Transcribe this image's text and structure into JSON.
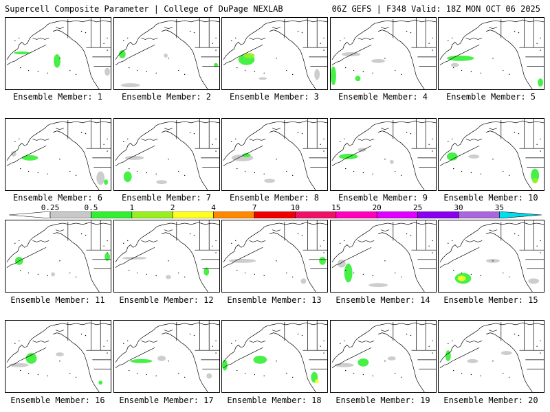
{
  "header": {
    "left_title": "Supercell Composite Parameter | College of DuPage NEXLAB",
    "right_title": "06Z GEFS | F348 Valid: 18Z MON OCT 06 2025"
  },
  "colorbar": {
    "labels": [
      "0.25",
      "0.5",
      "1",
      "2",
      "4",
      "7",
      "10",
      "15",
      "20",
      "25",
      "30",
      "35"
    ],
    "colors": [
      "#ffffff",
      "#c8c8c8",
      "#33ee33",
      "#99ee22",
      "#ffff22",
      "#ff8800",
      "#ee0000",
      "#ee1166",
      "#ff00bb",
      "#dd00ff",
      "#8800ee",
      "#aa66dd",
      "#00ddee"
    ]
  },
  "panels": [
    {
      "label": "Ensemble Member: 1"
    },
    {
      "label": "Ensemble Member: 2"
    },
    {
      "label": "Ensemble Member: 3"
    },
    {
      "label": "Ensemble Member: 4"
    },
    {
      "label": "Ensemble Member: 5"
    },
    {
      "label": "Ensemble Member: 6"
    },
    {
      "label": "Ensemble Member: 7"
    },
    {
      "label": "Ensemble Member: 8"
    },
    {
      "label": "Ensemble Member: 9"
    },
    {
      "label": "Ensemble Member: 10"
    },
    {
      "label": "Ensemble Member: 11"
    },
    {
      "label": "Ensemble Member: 12"
    },
    {
      "label": "Ensemble Member: 13"
    },
    {
      "label": "Ensemble Member: 14"
    },
    {
      "label": "Ensemble Member: 15"
    },
    {
      "label": "Ensemble Member: 16"
    },
    {
      "label": "Ensemble Member: 17"
    },
    {
      "label": "Ensemble Member: 18"
    },
    {
      "label": "Ensemble Member: 19"
    },
    {
      "label": "Ensemble Member: 20"
    }
  ]
}
